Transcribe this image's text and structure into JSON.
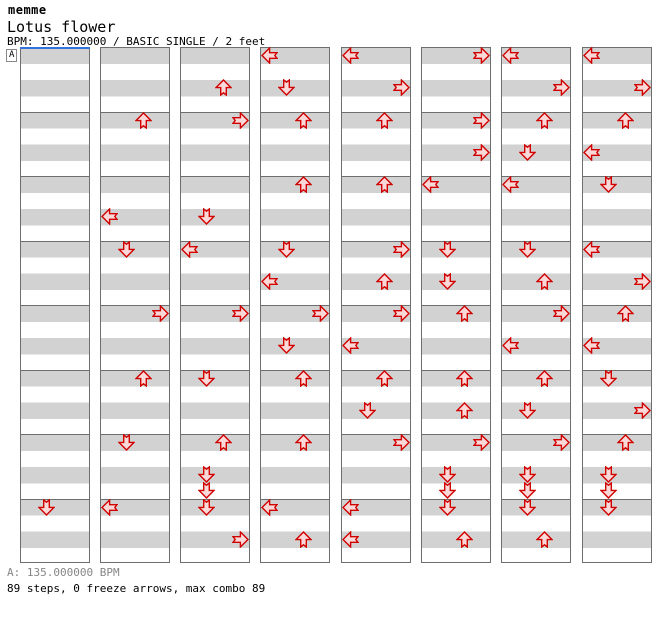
{
  "header": {
    "artist": "memme",
    "title": "Lotus flower",
    "info": "BPM: 135.000000 / BASIC SINGLE / 2 feet"
  },
  "marker": {
    "label": "A"
  },
  "footer": {
    "bpm_line": "A: 135.000000 BPM",
    "stats_line": "89 steps, 0 freeze arrows, max combo 89"
  },
  "colors": {
    "arrow_fill": "#fcd9d9",
    "arrow_stroke": "#d00000",
    "stripe": "#d2d2d2",
    "line": "#6e6e6e",
    "marker_blue": "#3273de",
    "footer_gray": "#868686"
  },
  "chart": {
    "columns": 8,
    "measures_per_column": 8,
    "rows_per_measure": 4,
    "directions": [
      "L",
      "D",
      "U",
      "R"
    ],
    "notes": [
      [
        [
          7,
          0,
          "D"
        ]
      ],
      [
        [
          1,
          0,
          "U"
        ],
        [
          2,
          2,
          "L"
        ],
        [
          3,
          0,
          "D"
        ],
        [
          4,
          0,
          "R"
        ],
        [
          5,
          0,
          "U"
        ],
        [
          6,
          0,
          "D"
        ],
        [
          7,
          0,
          "L"
        ]
      ],
      [
        [
          0,
          2,
          "U"
        ],
        [
          1,
          0,
          "R"
        ],
        [
          2,
          2,
          "D"
        ],
        [
          3,
          0,
          "L"
        ],
        [
          4,
          0,
          "R"
        ],
        [
          5,
          0,
          "D"
        ],
        [
          6,
          0,
          "U"
        ],
        [
          6,
          2,
          "D"
        ],
        [
          6,
          3,
          "D"
        ],
        [
          7,
          0,
          "D"
        ],
        [
          7,
          2,
          "R"
        ]
      ],
      [
        [
          0,
          0,
          "L"
        ],
        [
          0,
          2,
          "D"
        ],
        [
          1,
          0,
          "U"
        ],
        [
          2,
          0,
          "U"
        ],
        [
          3,
          0,
          "D"
        ],
        [
          3,
          2,
          "L"
        ],
        [
          4,
          0,
          "R"
        ],
        [
          4,
          2,
          "D"
        ],
        [
          5,
          0,
          "U"
        ],
        [
          6,
          0,
          "U"
        ],
        [
          7,
          0,
          "L"
        ],
        [
          7,
          2,
          "U"
        ]
      ],
      [
        [
          0,
          0,
          "L"
        ],
        [
          0,
          2,
          "R"
        ],
        [
          1,
          0,
          "U"
        ],
        [
          2,
          0,
          "U"
        ],
        [
          3,
          0,
          "R"
        ],
        [
          3,
          2,
          "U"
        ],
        [
          4,
          0,
          "R"
        ],
        [
          4,
          2,
          "L"
        ],
        [
          5,
          0,
          "U"
        ],
        [
          5,
          2,
          "D"
        ],
        [
          6,
          0,
          "R"
        ],
        [
          7,
          0,
          "L"
        ],
        [
          7,
          2,
          "L"
        ]
      ],
      [
        [
          0,
          0,
          "R"
        ],
        [
          1,
          0,
          "R"
        ],
        [
          1,
          2,
          "R"
        ],
        [
          2,
          0,
          "L"
        ],
        [
          3,
          0,
          "D"
        ],
        [
          3,
          2,
          "D"
        ],
        [
          4,
          0,
          "U"
        ],
        [
          5,
          0,
          "U"
        ],
        [
          5,
          2,
          "U"
        ],
        [
          6,
          0,
          "R"
        ],
        [
          6,
          2,
          "D"
        ],
        [
          6,
          3,
          "D"
        ],
        [
          7,
          0,
          "D"
        ],
        [
          7,
          2,
          "U"
        ]
      ],
      [
        [
          0,
          0,
          "L"
        ],
        [
          0,
          2,
          "R"
        ],
        [
          1,
          0,
          "U"
        ],
        [
          1,
          2,
          "D"
        ],
        [
          2,
          0,
          "L"
        ],
        [
          3,
          0,
          "D"
        ],
        [
          3,
          2,
          "U"
        ],
        [
          4,
          0,
          "R"
        ],
        [
          4,
          2,
          "L"
        ],
        [
          5,
          0,
          "U"
        ],
        [
          5,
          2,
          "D"
        ],
        [
          6,
          0,
          "R"
        ],
        [
          6,
          2,
          "D"
        ],
        [
          6,
          3,
          "D"
        ],
        [
          7,
          0,
          "D"
        ],
        [
          7,
          2,
          "U"
        ]
      ],
      [
        [
          0,
          0,
          "L"
        ],
        [
          0,
          2,
          "R"
        ],
        [
          1,
          0,
          "U"
        ],
        [
          1,
          2,
          "L"
        ],
        [
          2,
          0,
          "D"
        ],
        [
          3,
          0,
          "L"
        ],
        [
          3,
          2,
          "R"
        ],
        [
          4,
          0,
          "U"
        ],
        [
          4,
          2,
          "L"
        ],
        [
          5,
          0,
          "D"
        ],
        [
          5,
          2,
          "R"
        ],
        [
          6,
          0,
          "U"
        ],
        [
          6,
          2,
          "D"
        ],
        [
          6,
          3,
          "D"
        ],
        [
          7,
          0,
          "D"
        ]
      ]
    ]
  }
}
